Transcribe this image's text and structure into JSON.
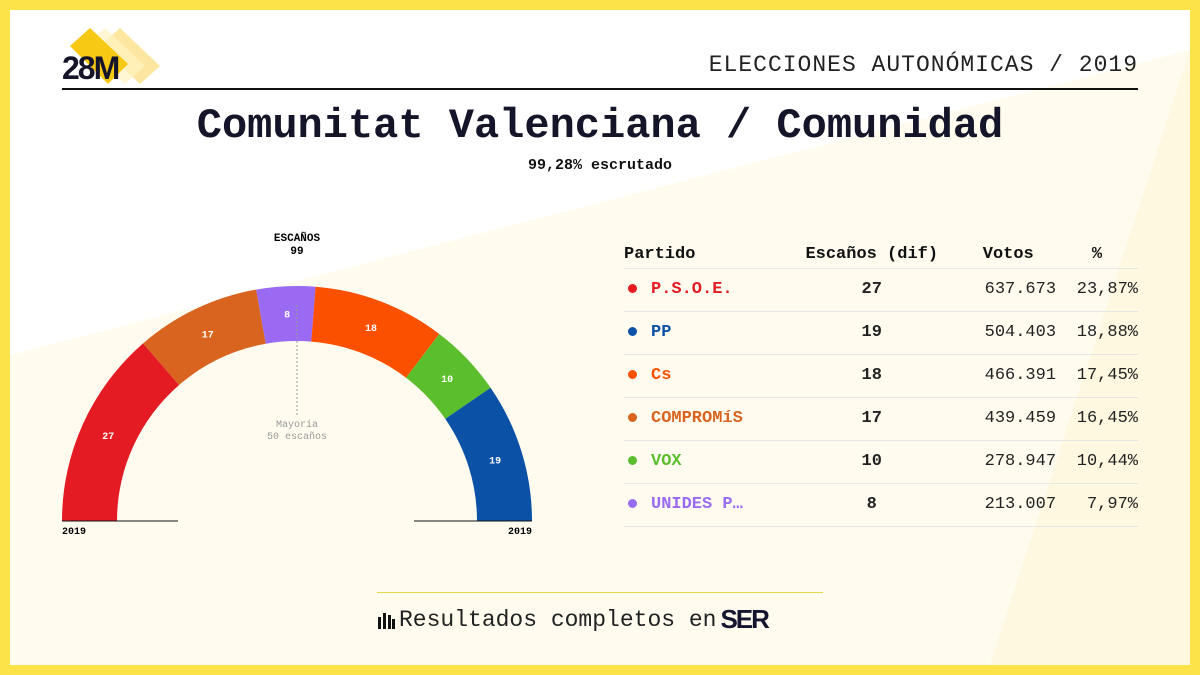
{
  "header": {
    "logo": "28M",
    "title": "ELECCIONES AUTONÓMICAS / 2019"
  },
  "main": {
    "title": "Comunitat Valenciana / Comunidad",
    "subtitle": "99,28% escrutado"
  },
  "chart_data": {
    "type": "hemicycle",
    "title": "ESCAÑOS",
    "total": "99",
    "majority_label": "Mayoría",
    "majority_value": "50 escaños",
    "left_label": "2019",
    "right_label": "2019",
    "seats": [
      {
        "party": "P.S.O.E.",
        "value": 27,
        "color": "#e41b23"
      },
      {
        "party": "COMPROMÍS",
        "value": 17,
        "color": "#d9641f"
      },
      {
        "party": "UNIDES P",
        "value": 8,
        "color": "#9a6af2"
      },
      {
        "party": "Cs",
        "value": 18,
        "color": "#fa5000"
      },
      {
        "party": "VOX",
        "value": 10,
        "color": "#5bbf2d"
      },
      {
        "party": "PP",
        "value": 19,
        "color": "#0b51a6"
      }
    ]
  },
  "table": {
    "headers": [
      "Partido",
      "Escaños (dif)",
      "Votos",
      "%"
    ],
    "rows": [
      {
        "party": "P.S.O.E.",
        "seats": "27",
        "votes": "637.673",
        "pct": "23,87%",
        "color": "#e41b23"
      },
      {
        "party": "PP",
        "seats": "19",
        "votes": "504.403",
        "pct": "18,88%",
        "color": "#0b51a6"
      },
      {
        "party": "Cs",
        "seats": "18",
        "votes": "466.391",
        "pct": "17,45%",
        "color": "#fa5000"
      },
      {
        "party": "COMPROMíS",
        "seats": "17",
        "votes": "439.459",
        "pct": "16,45%",
        "color": "#d9641f"
      },
      {
        "party": "VOX",
        "seats": "10",
        "votes": "278.947",
        "pct": "10,44%",
        "color": "#5bbf2d"
      },
      {
        "party": "UNIDES P…",
        "seats": "8",
        "votes": "213.007",
        "pct": "7,97%",
        "color": "#9a6af2"
      }
    ]
  },
  "footer": {
    "text": "Resultados completos en",
    "brand": "SER",
    "icon": "bar-chart-icon"
  }
}
